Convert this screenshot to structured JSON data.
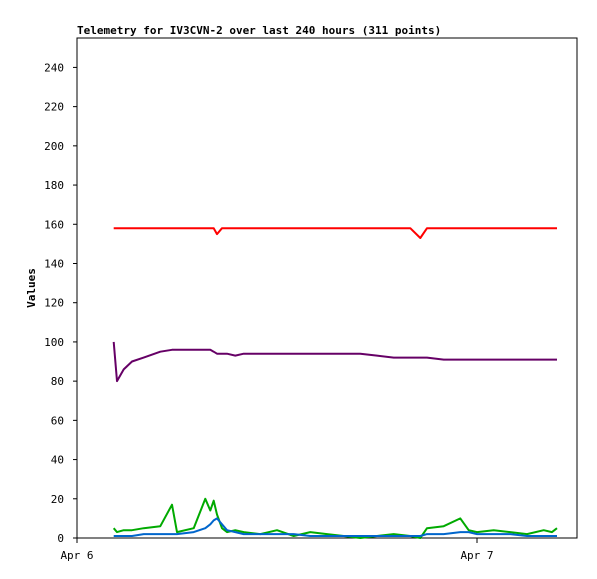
{
  "chart_data": {
    "type": "line",
    "title": "Telemetry for IV3CVN-2 over last 240 hours (311 points)",
    "y_label": "Values",
    "x": [
      2.2,
      2.4,
      2.8,
      3.3,
      4.0,
      5.0,
      5.7,
      6.0,
      7.0,
      7.7,
      8.0,
      8.2,
      8.4,
      8.7,
      9.0,
      9.5,
      10.0,
      11.0,
      12.0,
      13.0,
      14.0,
      15.0,
      16.0,
      17.0,
      18.0,
      19.0,
      20.0,
      20.6,
      21.0,
      22.0,
      23.0,
      23.5,
      24.0,
      25.0,
      26.0,
      27.0,
      28.0,
      28.5,
      28.8
    ],
    "xlim": [
      0,
      30
    ],
    "xticks": [
      {
        "value": 0,
        "label": "Apr 6"
      },
      {
        "value": 24,
        "label": "Apr 7"
      }
    ],
    "ylim": [
      0,
      255
    ],
    "yticks": [
      0,
      20,
      40,
      60,
      80,
      100,
      120,
      140,
      160,
      180,
      200,
      220,
      240
    ],
    "series": [
      {
        "color": "#ff0000",
        "values": [
          158,
          158,
          158,
          158,
          158,
          158,
          158,
          158,
          158,
          158,
          158,
          158,
          155,
          158,
          158,
          158,
          158,
          158,
          158,
          158,
          158,
          158,
          158,
          158,
          158,
          158,
          158,
          153,
          158,
          158,
          158,
          158,
          158,
          158,
          158,
          158,
          158,
          158,
          158
        ]
      },
      {
        "color": "#660066",
        "values": [
          100,
          80,
          86,
          90,
          92,
          95,
          96,
          96,
          96,
          96,
          96,
          95,
          94,
          94,
          94,
          93,
          94,
          94,
          94,
          94,
          94,
          94,
          94,
          94,
          93,
          92,
          92,
          92,
          92,
          91,
          91,
          91,
          91,
          91,
          91,
          91,
          91,
          91,
          91
        ]
      },
      {
        "color": "#00aa00",
        "values": [
          5,
          3,
          4,
          4,
          5,
          6,
          17,
          3,
          5,
          20,
          14,
          19,
          12,
          5,
          3,
          4,
          3,
          2,
          4,
          1,
          3,
          2,
          1,
          0,
          1,
          2,
          1,
          0,
          5,
          6,
          10,
          4,
          3,
          4,
          3,
          2,
          4,
          3,
          5
        ]
      },
      {
        "color": "#0066cc",
        "values": [
          1,
          1,
          1,
          1,
          2,
          2,
          2,
          2,
          3,
          5,
          7,
          9,
          10,
          7,
          4,
          3,
          2,
          2,
          2,
          2,
          1,
          1,
          1,
          1,
          1,
          1,
          1,
          1,
          2,
          2,
          3,
          3,
          2,
          2,
          2,
          1,
          1,
          1,
          1
        ]
      }
    ]
  }
}
